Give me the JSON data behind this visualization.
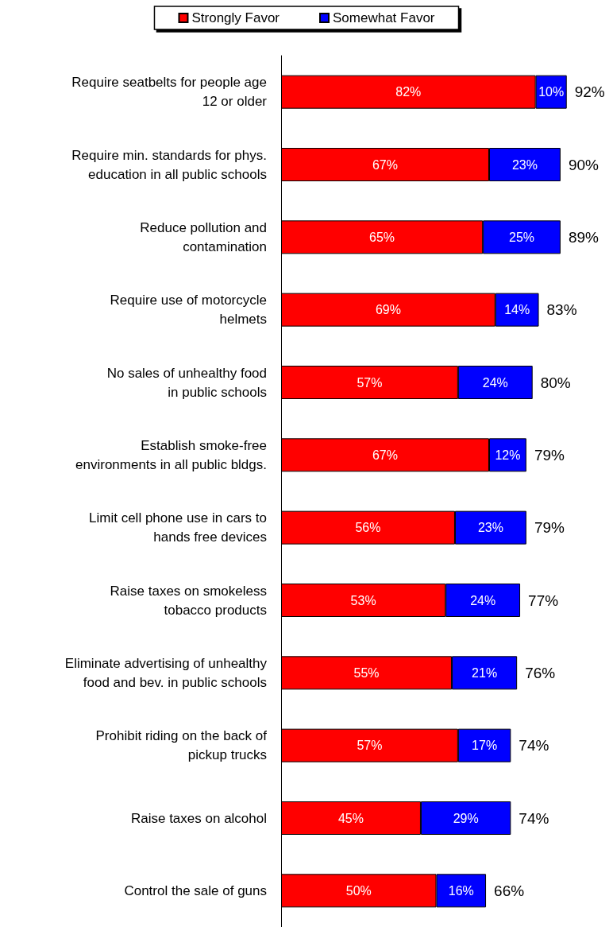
{
  "chart_data": {
    "type": "bar",
    "orientation": "horizontal",
    "stacked": true,
    "legend": "top",
    "categories": [
      "Require seatbelts for people age\n12 or older",
      "Require min. standards for phys.\neducation in all public schools",
      "Reduce pollution and\ncontamination",
      "Require use of motorcycle\nhelmets",
      "No sales of unhealthy food\nin public schools",
      "Establish smoke-free\nenvironments in all public bldgs.",
      "Limit cell phone use in cars to\nhands free devices",
      "Raise taxes on smokeless\ntobacco products",
      "Eliminate advertising of unhealthy\nfood and bev. in public schools",
      "Prohibit riding on the back of\npickup trucks",
      "Raise taxes on alcohol",
      "Control the sale of guns"
    ],
    "series": [
      {
        "name": "Strongly Favor",
        "color": "#ff0000",
        "values": [
          82,
          67,
          65,
          69,
          57,
          67,
          56,
          53,
          55,
          57,
          45,
          50
        ],
        "value_labels": [
          "82%",
          "67%",
          "65%",
          "69%",
          "57%",
          "67%",
          "56%",
          "53%",
          "55%",
          "57%",
          "45%",
          "50%"
        ]
      },
      {
        "name": "Somewhat Favor",
        "color": "#0000ff",
        "values": [
          10,
          23,
          25,
          14,
          24,
          12,
          23,
          24,
          21,
          17,
          29,
          16
        ],
        "value_labels": [
          "10%",
          "23%",
          "25%",
          "14%",
          "24%",
          "12%",
          "23%",
          "24%",
          "21%",
          "17%",
          "29%",
          "16%"
        ]
      }
    ],
    "totals": [
      "92%",
      "90%",
      "89%",
      "83%",
      "80%",
      "79%",
      "79%",
      "77%",
      "76%",
      "74%",
      "74%",
      "66%"
    ]
  }
}
